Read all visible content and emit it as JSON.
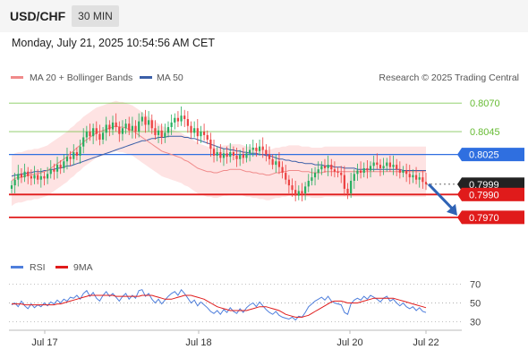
{
  "header": {
    "pair": "USD/CHF",
    "interval": "30 MIN",
    "timestamp": "Monday, July 21, 2025 10:54:56 AM CET"
  },
  "legend": {
    "ma20": "MA 20 + Bollinger Bands",
    "ma50": "MA 50",
    "credit": "Research © 2025 Trading Central",
    "rsi": "RSI",
    "rsi_ma": "9MA"
  },
  "colors": {
    "up": "#27ae60",
    "down": "#ec4040",
    "ma20": "#f08a8a",
    "band": "#fdd9d9",
    "ma50": "#3b5fa8",
    "pivot": "#2f6fe0",
    "support": "#e01b1b",
    "target": "#66bb33",
    "current": "#222222",
    "arrow": "#2f63b5",
    "rsi": "#4f7fdc",
    "rsi_ma": "#e01b1b"
  },
  "chart_data": [
    {
      "type": "candlestick",
      "title": "USD/CHF",
      "ylim": [
        0.7955,
        0.8085
      ],
      "x_ticks": [
        "Jul 17",
        "Jul 18",
        "Jul 20",
        "Jul 22"
      ],
      "levels": [
        {
          "value": 0.807,
          "label": "0.8070",
          "kind": "target"
        },
        {
          "value": 0.8045,
          "label": "0.8045",
          "kind": "target"
        },
        {
          "value": 0.8025,
          "label": "0.8025",
          "kind": "pivot"
        },
        {
          "value": 0.7999,
          "label": "0.7999",
          "kind": "current"
        },
        {
          "value": 0.799,
          "label": "0.7990",
          "kind": "support"
        },
        {
          "value": 0.797,
          "label": "0.7970",
          "kind": "support"
        }
      ],
      "closes": [
        0.7998,
        0.8003,
        0.8008,
        0.8005,
        0.801,
        0.8006,
        0.8004,
        0.8007,
        0.8003,
        0.8006,
        0.8004,
        0.8008,
        0.8012,
        0.801,
        0.8016,
        0.8013,
        0.8019,
        0.8023,
        0.8021,
        0.8027,
        0.8024,
        0.8032,
        0.804,
        0.8045,
        0.8041,
        0.8048,
        0.8043,
        0.8038,
        0.8044,
        0.8051,
        0.8047,
        0.8053,
        0.8049,
        0.8043,
        0.8048,
        0.8052,
        0.8046,
        0.805,
        0.8045,
        0.8054,
        0.8058,
        0.8051,
        0.8055,
        0.8048,
        0.8042,
        0.8046,
        0.804,
        0.8044,
        0.8049,
        0.8053,
        0.8057,
        0.8054,
        0.8059,
        0.8056,
        0.805,
        0.8044,
        0.8048,
        0.8041,
        0.8045,
        0.8042,
        0.8038,
        0.803,
        0.8024,
        0.8027,
        0.8022,
        0.8026,
        0.8023,
        0.8027,
        0.8024,
        0.8021,
        0.8025,
        0.8022,
        0.8026,
        0.8029,
        0.8031,
        0.8028,
        0.8032,
        0.8029,
        0.8025,
        0.8021,
        0.8016,
        0.8019,
        0.8014,
        0.8009,
        0.8003,
        0.7998,
        0.7994,
        0.7989,
        0.7993,
        0.7991,
        0.7997,
        0.8002,
        0.8005,
        0.8009,
        0.8012,
        0.8015,
        0.8013,
        0.8016,
        0.8012,
        0.801,
        0.8009,
        0.8007,
        0.7995,
        0.7991,
        0.8002,
        0.8008,
        0.8011,
        0.8009,
        0.8013,
        0.8011,
        0.8015,
        0.8018,
        0.8016,
        0.8013,
        0.8015,
        0.8018,
        0.8014,
        0.8016,
        0.8012,
        0.8009,
        0.8011,
        0.8008,
        0.8005,
        0.8007,
        0.8003,
        0.8005,
        0.8001,
        0.7999
      ],
      "ma20": [
        0.8002,
        0.8004,
        0.8005,
        0.8005,
        0.8006,
        0.8007,
        0.8007,
        0.8008,
        0.8008,
        0.8009,
        0.801,
        0.8011,
        0.8013,
        0.8015,
        0.8017,
        0.8019,
        0.8021,
        0.8023,
        0.8026,
        0.8028,
        0.8031,
        0.8033,
        0.8036,
        0.8038,
        0.804,
        0.8042,
        0.8044,
        0.8045,
        0.8046,
        0.8047,
        0.8048,
        0.8049,
        0.805,
        0.8049,
        0.8049,
        0.8048,
        0.8047,
        0.8046,
        0.8044,
        0.8042,
        0.804,
        0.8038,
        0.8036,
        0.8034,
        0.8032,
        0.803,
        0.8028,
        0.8027,
        0.8026,
        0.8025,
        0.8024,
        0.8023,
        0.8022,
        0.802,
        0.8019,
        0.8017,
        0.8015,
        0.8013,
        0.8012,
        0.8011,
        0.801,
        0.801,
        0.8009,
        0.8009,
        0.801,
        0.8011,
        0.8011,
        0.8012,
        0.8012,
        0.8012,
        0.8012,
        0.8011,
        0.801,
        0.801,
        0.8009,
        0.8009,
        0.8008,
        0.8008,
        0.8007,
        0.8007,
        0.8008,
        0.8009,
        0.8009,
        0.801,
        0.801,
        0.8011,
        0.8011,
        0.8011,
        0.8011,
        0.801,
        0.801,
        0.801,
        0.8009,
        0.8009,
        0.8009,
        0.8009,
        0.801,
        0.801,
        0.801,
        0.801,
        0.801,
        0.801,
        0.801,
        0.801,
        0.801,
        0.801,
        0.801,
        0.801,
        0.801,
        0.801,
        0.801,
        0.801,
        0.801,
        0.801,
        0.801,
        0.801,
        0.801,
        0.801,
        0.801,
        0.801,
        0.801,
        0.801,
        0.801,
        0.801,
        0.801,
        0.801,
        0.801,
        0.801
      ],
      "ma50": [
        0.8006,
        0.8007,
        0.8007,
        0.8008,
        0.8008,
        0.8009,
        0.8009,
        0.801,
        0.801,
        0.801,
        0.8011,
        0.8011,
        0.8012,
        0.8012,
        0.8013,
        0.8013,
        0.8014,
        0.8015,
        0.8015,
        0.8016,
        0.8017,
        0.8018,
        0.8019,
        0.802,
        0.8021,
        0.8022,
        0.8023,
        0.8024,
        0.8025,
        0.8026,
        0.8027,
        0.8028,
        0.8029,
        0.803,
        0.8031,
        0.8032,
        0.8033,
        0.8034,
        0.8035,
        0.8036,
        0.8037,
        0.8037,
        0.8038,
        0.8039,
        0.8039,
        0.804,
        0.804,
        0.804,
        0.8041,
        0.8041,
        0.8041,
        0.8041,
        0.8041,
        0.804,
        0.804,
        0.8039,
        0.8039,
        0.8038,
        0.8037,
        0.8036,
        0.8035,
        0.8034,
        0.8033,
        0.8032,
        0.8031,
        0.803,
        0.803,
        0.8029,
        0.8029,
        0.8028,
        0.8028,
        0.8027,
        0.8027,
        0.8026,
        0.8026,
        0.8026,
        0.8025,
        0.8025,
        0.8024,
        0.8024,
        0.8023,
        0.8022,
        0.8021,
        0.8021,
        0.802,
        0.802,
        0.8019,
        0.8019,
        0.8018,
        0.8018,
        0.8017,
        0.8017,
        0.8017,
        0.8016,
        0.8016,
        0.8016,
        0.8015,
        0.8015,
        0.8015,
        0.8014,
        0.8014,
        0.8014,
        0.8013,
        0.8013,
        0.8013,
        0.8013,
        0.8012,
        0.8012,
        0.8012,
        0.8012,
        0.8012,
        0.8012,
        0.8012,
        0.8012,
        0.8012,
        0.8012,
        0.8012,
        0.8012,
        0.8012,
        0.8012,
        0.8011,
        0.8011,
        0.8011,
        0.8011,
        0.8011,
        0.8011,
        0.8011,
        0.8011
      ],
      "band_width": 0.0022,
      "projection": {
        "from": 0.7999,
        "to": 0.797
      }
    },
    {
      "type": "line",
      "title": "RSI",
      "ylim": [
        25,
        75
      ],
      "y_ticks": [
        70,
        50,
        30
      ],
      "rsi": [
        48,
        50,
        46,
        52,
        47,
        44,
        49,
        45,
        48,
        46,
        50,
        47,
        51,
        49,
        53,
        50,
        54,
        52,
        56,
        55,
        58,
        54,
        60,
        63,
        57,
        61,
        55,
        52,
        58,
        62,
        57,
        60,
        56,
        52,
        57,
        60,
        54,
        58,
        55,
        63,
        64,
        57,
        60,
        54,
        50,
        54,
        49,
        53,
        57,
        60,
        62,
        58,
        64,
        60,
        55,
        50,
        53,
        47,
        51,
        48,
        45,
        41,
        39,
        42,
        38,
        43,
        40,
        45,
        41,
        39,
        44,
        40,
        45,
        48,
        50,
        46,
        51,
        47,
        43,
        40,
        38,
        41,
        37,
        35,
        34,
        33,
        35,
        32,
        36,
        35,
        40,
        46,
        49,
        52,
        54,
        56,
        53,
        57,
        52,
        50,
        49,
        48,
        40,
        38,
        49,
        53,
        55,
        53,
        57,
        54,
        58,
        56,
        54,
        51,
        55,
        57,
        52,
        54,
        50,
        47,
        50,
        46,
        44,
        46,
        42,
        45,
        41,
        40
      ],
      "rsi_ma": [
        49,
        49,
        49,
        49,
        48,
        48,
        48,
        48,
        48,
        48,
        48,
        48,
        48,
        48,
        49,
        49,
        50,
        51,
        52,
        53,
        54,
        55,
        56,
        57,
        58,
        58,
        58,
        58,
        58,
        58,
        58,
        58,
        57,
        57,
        57,
        57,
        57,
        57,
        57,
        57,
        58,
        58,
        58,
        58,
        57,
        56,
        55,
        54,
        54,
        54,
        55,
        56,
        57,
        58,
        58,
        58,
        57,
        56,
        55,
        54,
        52,
        50,
        48,
        46,
        45,
        44,
        43,
        42,
        42,
        42,
        42,
        42,
        42,
        43,
        44,
        45,
        46,
        46,
        46,
        45,
        44,
        43,
        42,
        40,
        38,
        37,
        36,
        35,
        35,
        35,
        36,
        37,
        39,
        41,
        43,
        45,
        47,
        49,
        51,
        52,
        52,
        52,
        51,
        50,
        50,
        50,
        50,
        51,
        52,
        53,
        54,
        55,
        55,
        55,
        55,
        55,
        55,
        55,
        54,
        53,
        52,
        51,
        50,
        49,
        48,
        47,
        46,
        45
      ]
    }
  ]
}
